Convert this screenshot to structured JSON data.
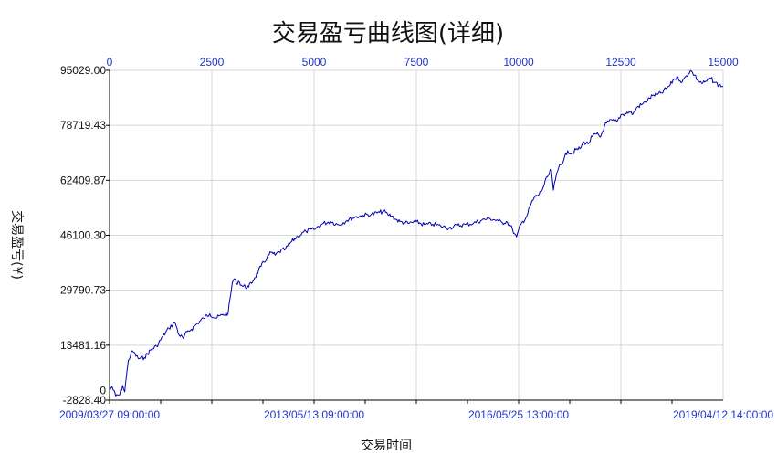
{
  "chart_data": {
    "type": "line",
    "title": "交易盈亏曲线图(详细)",
    "xlabel": "交易时间",
    "ylabel": "交易盈亏(¥)",
    "grid": true,
    "x_top_ticks": [
      "0",
      "2500",
      "5000",
      "7500",
      "10000",
      "12500",
      "15000"
    ],
    "x_top_range": [
      0,
      15000
    ],
    "x_bottom_ticks": [
      "2009/03/27 09:00:00",
      "2013/05/13 09:00:00",
      "2016/05/25 13:00:00",
      "2019/04/12 14:00:00"
    ],
    "y_ticks": [
      "95029.00",
      "78719.43",
      "62409.87",
      "46100.30",
      "29790.73",
      "13481.16",
      "-2828.40"
    ],
    "y_zero_label": "0",
    "ylim": [
      -2828.4,
      95029.0
    ],
    "series": [
      {
        "color": "#0000b4",
        "x": [
          0,
          60,
          150,
          250,
          320,
          370,
          400,
          460,
          560,
          700,
          850,
          1000,
          1150,
          1300,
          1450,
          1600,
          1700,
          1800,
          1900,
          2000,
          2150,
          2300,
          2450,
          2600,
          2750,
          2900,
          3000,
          3050,
          3100,
          3150,
          3250,
          3400,
          3550,
          3700,
          3850,
          3950,
          4050,
          4150,
          4300,
          4450,
          4600,
          4800,
          5000,
          5200,
          5400,
          5600,
          5800,
          6000,
          6200,
          6400,
          6600,
          6700,
          6800,
          6900,
          7000,
          7100,
          7200,
          7300,
          7500,
          7700,
          7900,
          8100,
          8300,
          8500,
          8700,
          8900,
          9100,
          9300,
          9500,
          9600,
          9700,
          9800,
          9850,
          9900,
          9950,
          10050,
          10200,
          10300,
          10400,
          10500,
          10600,
          10700,
          10800,
          10850,
          10900,
          11000,
          11100,
          11200,
          11300,
          11400,
          11500,
          11600,
          11700,
          11800,
          11900,
          12000,
          12100,
          12200,
          12300,
          12400,
          12500,
          12600,
          12700,
          12800,
          12900,
          13000,
          13100,
          13200,
          13300,
          13400,
          13500,
          13600,
          13700,
          13800,
          13900,
          14000,
          14100,
          14200,
          14300,
          14400,
          14500,
          14600,
          14700,
          14800,
          14900,
          15000
        ],
        "y": [
          0,
          1200,
          -1600,
          -1200,
          1500,
          -400,
          3000,
          9000,
          11800,
          9500,
          9800,
          12000,
          13200,
          16000,
          18500,
          20300,
          16500,
          15500,
          17500,
          18200,
          20000,
          21500,
          22800,
          21500,
          22400,
          23000,
          32000,
          33200,
          31800,
          32500,
          31000,
          30700,
          33500,
          36800,
          39500,
          41000,
          40200,
          41200,
          42000,
          44200,
          45800,
          47300,
          47800,
          49500,
          50200,
          49200,
          50500,
          51500,
          52000,
          52300,
          52900,
          53200,
          52300,
          51800,
          50800,
          50100,
          49900,
          49600,
          50100,
          49200,
          49400,
          48800,
          48300,
          49000,
          49300,
          49700,
          50600,
          51100,
          50400,
          49800,
          50200,
          48900,
          47800,
          46600,
          45600,
          49200,
          51800,
          55300,
          57500,
          58200,
          60300,
          63400,
          65500,
          59500,
          62600,
          67000,
          68300,
          71200,
          70300,
          71500,
          71800,
          73800,
          73200,
          75400,
          76100,
          75200,
          78600,
          79800,
          80200,
          79700,
          81800,
          82200,
          82700,
          82100,
          84200,
          84800,
          85600,
          86800,
          87700,
          87900,
          88300,
          89600,
          90600,
          92500,
          92900,
          91600,
          93400,
          95000,
          93600,
          91800,
          91200,
          91800,
          92600,
          91400,
          90600,
          90300
        ]
      }
    ]
  }
}
